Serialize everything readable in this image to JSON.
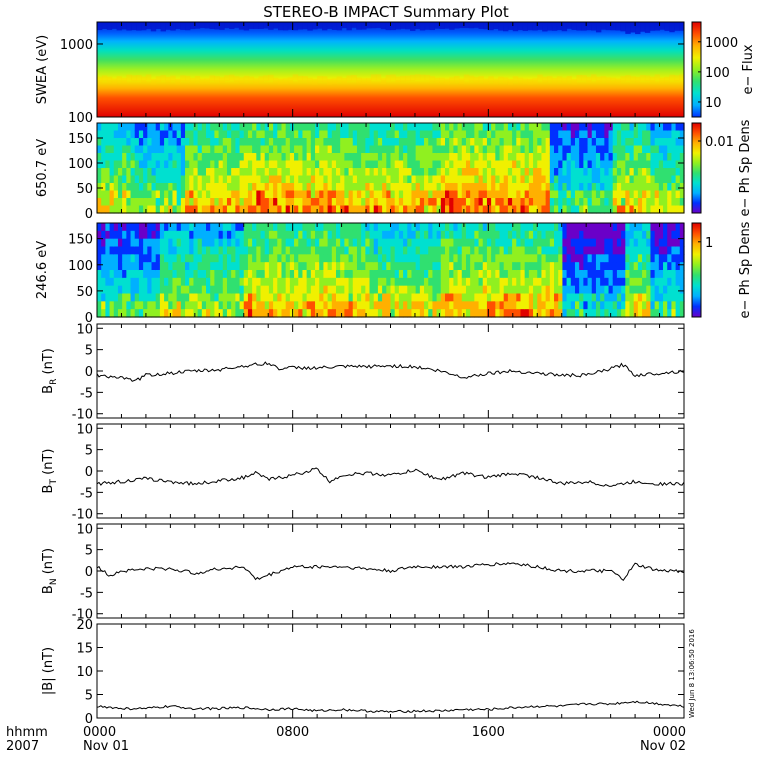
{
  "title": "STEREO-B IMPACT Summary Plot",
  "time_axis": {
    "row1_label": "hhmm",
    "row2_label": "2007",
    "ticks": [
      {
        "hours": 0,
        "hhmm": "0000",
        "date": "Nov 01"
      },
      {
        "hours": 8,
        "hhmm": "0800",
        "date": ""
      },
      {
        "hours": 16,
        "hhmm": "1600",
        "date": ""
      },
      {
        "hours": 24,
        "hhmm": "0000",
        "date": "Nov 02"
      }
    ],
    "range_hours": [
      0,
      24
    ],
    "minor_step_hours": 1
  },
  "timestamp_label": "Wed Jun  8 13:06:50 2016",
  "colors": {
    "spectrogram_scale": [
      "#6a00c8",
      "#0030ff",
      "#00b0ff",
      "#00e0d0",
      "#30e070",
      "#90f020",
      "#f0f000",
      "#ffb000",
      "#ff5000",
      "#e00000"
    ],
    "line": "#000000",
    "axes": "#000000"
  },
  "chart_data": [
    {
      "type": "heatmap",
      "ylabel": "SWEA (eV)",
      "y_scale": "log",
      "ylim": [
        100,
        2000
      ],
      "y_ticks": [
        "100",
        "1000"
      ],
      "colorbar_label": "e− Flux",
      "colorbar_ticks": [
        "10",
        "100",
        "1000"
      ],
      "colorbar_scale": "log",
      "colorbar_range": [
        3,
        5000
      ],
      "description_bands": "flux highest (red) at low energies near 100 eV, decreasing to blue above ~1500 eV",
      "x": [
        0,
        2,
        4,
        6,
        8,
        10,
        12,
        14,
        16,
        18,
        20,
        21.5,
        22.5,
        24
      ],
      "top_fraction_blue": [
        0.17,
        0.17,
        0.16,
        0.16,
        0.17,
        0.16,
        0.17,
        0.16,
        0.17,
        0.17,
        0.18,
        0.2,
        0.18,
        0.17
      ]
    },
    {
      "type": "heatmap",
      "ylabel": "650.7 eV",
      "ylim": [
        0,
        180
      ],
      "y_ticks": [
        "0",
        "50",
        "100",
        "150"
      ],
      "colorbar_label": "e− Ph Sp Dens",
      "colorbar_ticks": [
        "0.01"
      ],
      "description_bands": "mostly green with red/orange enhancements near 0-50 degrees; blue depletions near 03:00, 21:00-23:00",
      "segments": [
        {
          "t0": 0,
          "t1": 1.5,
          "level": 0.45
        },
        {
          "t0": 1.5,
          "t1": 3.5,
          "level": 0.35
        },
        {
          "t0": 3.5,
          "t1": 6,
          "level": 0.55
        },
        {
          "t0": 6,
          "t1": 10,
          "level": 0.6
        },
        {
          "t0": 10,
          "t1": 14,
          "level": 0.55
        },
        {
          "t0": 14,
          "t1": 18.5,
          "level": 0.65
        },
        {
          "t0": 18.5,
          "t1": 21,
          "level": 0.25
        },
        {
          "t0": 21,
          "t1": 22.5,
          "level": 0.5
        },
        {
          "t0": 22.5,
          "t1": 24,
          "level": 0.4
        }
      ]
    },
    {
      "type": "heatmap",
      "ylabel": "246.6 eV",
      "ylim": [
        0,
        180
      ],
      "y_ticks": [
        "0",
        "50",
        "100",
        "150"
      ],
      "colorbar_label": "e− Ph Sp Dens",
      "colorbar_ticks": [
        "1"
      ],
      "description_bands": "blue at top before 03:00 and after 19:00; green elsewhere; orange/red near bottom around 18:00 and 22:00",
      "segments": [
        {
          "t0": 0,
          "t1": 2.5,
          "level": 0.25
        },
        {
          "t0": 2.5,
          "t1": 6,
          "level": 0.4
        },
        {
          "t0": 6,
          "t1": 11,
          "level": 0.55
        },
        {
          "t0": 11,
          "t1": 14,
          "level": 0.45
        },
        {
          "t0": 14,
          "t1": 19,
          "level": 0.55
        },
        {
          "t0": 19,
          "t1": 21.5,
          "level": 0.15
        },
        {
          "t0": 21.5,
          "t1": 22.5,
          "level": 0.45
        },
        {
          "t0": 22.5,
          "t1": 24,
          "level": 0.2
        }
      ]
    },
    {
      "type": "line",
      "ylabel_main": "B",
      "ylabel_sub": "R",
      "ylabel_unit": " (nT)",
      "ylim": [
        -11,
        11
      ],
      "y_ticks": [
        -10,
        -5,
        0,
        5,
        10
      ],
      "x": [
        0,
        1,
        1.5,
        2,
        3,
        4,
        5,
        6,
        7,
        7.5,
        8,
        9,
        10,
        11,
        12,
        13,
        14,
        15,
        16,
        17,
        18,
        19,
        20,
        21,
        21.5,
        22,
        23,
        24
      ],
      "values": [
        -1,
        -1.5,
        -2.5,
        -1,
        -0.5,
        0,
        0.3,
        1.2,
        1.8,
        0.5,
        0.8,
        0.7,
        1,
        1,
        1.2,
        1,
        0,
        -1.5,
        -0.5,
        0,
        -0.5,
        -1,
        -1,
        0.5,
        1.5,
        -1,
        -0.5,
        0
      ]
    },
    {
      "type": "line",
      "ylabel_main": "B",
      "ylabel_sub": "T",
      "ylabel_unit": " (nT)",
      "ylim": [
        -11,
        11
      ],
      "y_ticks": [
        -10,
        -5,
        0,
        5,
        10
      ],
      "x": [
        0,
        1,
        2,
        3,
        4,
        5,
        6,
        6.5,
        7,
        8,
        9,
        9.5,
        10,
        11,
        12,
        13,
        14,
        15,
        16,
        17,
        18,
        19,
        20,
        21,
        22,
        23,
        24
      ],
      "values": [
        -3,
        -2.5,
        -1.8,
        -2.5,
        -3,
        -2.3,
        -1.5,
        -0.5,
        -2,
        -1,
        0.5,
        -2.5,
        -1,
        -0.5,
        -1,
        0.2,
        -2,
        -0.5,
        -1.5,
        -0.5,
        -1.5,
        -3,
        -2.5,
        -3.5,
        -2.5,
        -3,
        -3
      ]
    },
    {
      "type": "line",
      "ylabel_main": "B",
      "ylabel_sub": "N",
      "ylabel_unit": " (nT)",
      "ylim": [
        -11,
        11
      ],
      "y_ticks": [
        -10,
        -5,
        0,
        5,
        10
      ],
      "x": [
        0,
        0.5,
        1,
        2,
        3,
        4,
        5,
        6,
        6.5,
        7,
        8,
        9,
        10,
        11,
        12,
        13,
        14,
        15,
        16,
        17,
        18,
        19,
        20,
        21,
        21.5,
        22,
        23,
        24
      ],
      "values": [
        1,
        -1,
        0,
        0.5,
        0.5,
        -0.5,
        0.5,
        1,
        -2,
        -1,
        1,
        1,
        1,
        0.5,
        0,
        1,
        1,
        1,
        1.5,
        1.8,
        1,
        0,
        0,
        0,
        -2,
        1.5,
        0,
        0
      ]
    },
    {
      "type": "line",
      "ylabel_main": "|B|",
      "ylabel_sub": "",
      "ylabel_unit": " (nT)",
      "ylim": [
        0,
        20
      ],
      "y_ticks": [
        0,
        5,
        10,
        15,
        20
      ],
      "x": [
        0,
        1,
        2,
        3,
        4,
        5,
        6,
        7,
        8,
        9,
        10,
        11,
        12,
        13,
        14,
        15,
        16,
        17,
        18,
        19,
        20,
        21,
        22,
        23,
        24
      ],
      "values": [
        2.5,
        2,
        2,
        2.5,
        2,
        2,
        2.2,
        1.8,
        2,
        1.5,
        1.8,
        1.5,
        1.3,
        1.5,
        1.5,
        1.8,
        1.8,
        2.2,
        2.5,
        2.5,
        3,
        3,
        3.5,
        3,
        2.5
      ]
    }
  ]
}
